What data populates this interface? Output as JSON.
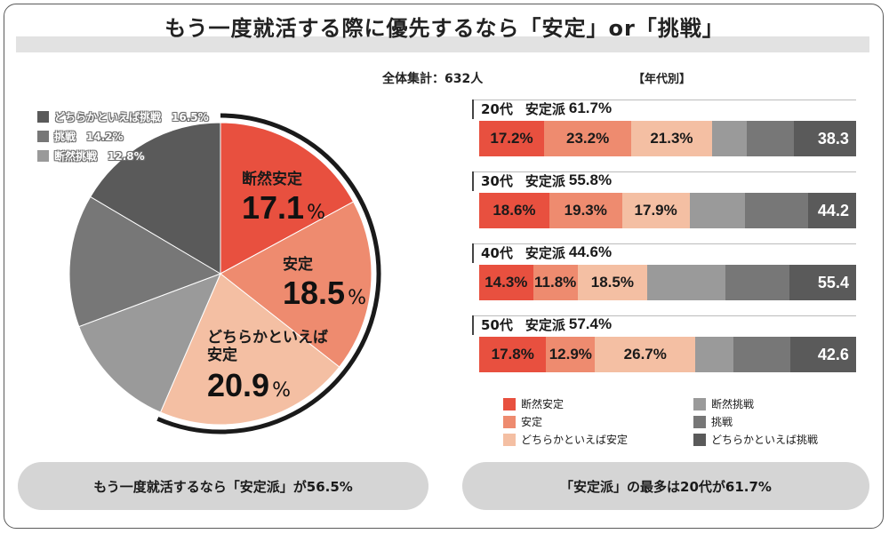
{
  "title": "もう一度就活する際に優先するなら「安定」or「挑戦」",
  "total_label": "全体集計：632人",
  "age_section_title": "【年代別】",
  "colors": {
    "dangzen_antei": "#e8503f",
    "antei": "#ee8b6f",
    "dochira_antei": "#f4bfa3",
    "dangzen_chosen": "#9a9a9a",
    "chosen": "#777777",
    "dochira_chosen": "#5a5a5a",
    "ring": "#1a1a1a"
  },
  "chart_data": [
    {
      "type": "pie",
      "title": "全体集計：632人",
      "slices": [
        {
          "name": "断然安定",
          "value": 17.1,
          "label": "17.1",
          "color": "#e8503f"
        },
        {
          "name": "安定",
          "value": 18.5,
          "label": "18.5",
          "color": "#ee8b6f"
        },
        {
          "name": "どちらかといえば安定",
          "value": 20.9,
          "label": "20.9",
          "color": "#f4bfa3"
        },
        {
          "name": "断然挑戦",
          "value": 12.8,
          "label": "12.8",
          "color": "#9a9a9a"
        },
        {
          "name": "挑戦",
          "value": 14.2,
          "label": "14.2",
          "color": "#777777"
        },
        {
          "name": "どちらかといえば挑戦",
          "value": 16.5,
          "label": "16.5",
          "color": "#5a5a5a"
        }
      ],
      "slice_labels": {
        "s0": "断然安定",
        "s1": "安定",
        "s2_line1": "どちらかといえば",
        "s2_line2": "安定",
        "pct_sign": "%"
      },
      "legend_items": [
        {
          "label": "どちらかといえば挑戦　16.5%",
          "color": "#5a5a5a"
        },
        {
          "label": "挑戦　14.2%",
          "color": "#777777"
        },
        {
          "label": "断然挑戦　12.8%",
          "color": "#9a9a9a"
        }
      ]
    },
    {
      "type": "bar",
      "orientation": "horizontal",
      "stacked": true,
      "title": "【年代別】",
      "categories": [
        "20代",
        "30代",
        "40代",
        "50代"
      ],
      "group_labels": [
        {
          "age": "20代",
          "label": "安定派",
          "pct": "61.7%"
        },
        {
          "age": "30代",
          "label": "安定派",
          "pct": "55.8%"
        },
        {
          "age": "40代",
          "label": "安定派",
          "pct": "44.6%"
        },
        {
          "age": "50代",
          "label": "安定派",
          "pct": "57.4%"
        }
      ],
      "series": [
        {
          "name": "断然安定",
          "color": "#e8503f",
          "values": [
            17.2,
            18.6,
            14.3,
            17.8
          ],
          "labels": [
            "17.2%",
            "18.6%",
            "14.3%",
            "17.8%"
          ]
        },
        {
          "name": "安定",
          "color": "#ee8b6f",
          "values": [
            23.2,
            19.3,
            11.8,
            12.9
          ],
          "labels": [
            "23.2%",
            "19.3%",
            "11.8%",
            "12.9%"
          ]
        },
        {
          "name": "どちらかといえば安定",
          "color": "#f4bfa3",
          "values": [
            21.3,
            17.9,
            18.5,
            26.7
          ],
          "labels": [
            "21.3%",
            "17.9%",
            "18.5%",
            "26.7%"
          ]
        },
        {
          "name": "断然挑戦",
          "color": "#9a9a9a",
          "values": [
            9.4,
            14.8,
            20.8,
            10.0
          ],
          "labels": [
            "",
            "",
            "",
            ""
          ]
        },
        {
          "name": "挑戦",
          "color": "#777777",
          "values": [
            12.3,
            16.7,
            17.0,
            15.2
          ],
          "labels": [
            "",
            "",
            "",
            ""
          ]
        },
        {
          "name": "どちらかといえば挑戦",
          "color": "#5a5a5a",
          "values": [
            16.6,
            12.7,
            17.6,
            17.4
          ],
          "labels": [
            "",
            "",
            "",
            ""
          ]
        }
      ],
      "challenge_totals": [
        "38.3",
        "44.2",
        "55.4",
        "42.6"
      ],
      "xlim": [
        0,
        100
      ]
    }
  ],
  "bar_legend": [
    {
      "label": "断然安定",
      "color": "#e8503f"
    },
    {
      "label": "安定",
      "color": "#ee8b6f"
    },
    {
      "label": "どちらかといえば安定",
      "color": "#f4bfa3"
    },
    {
      "label": "断然挑戦",
      "color": "#9a9a9a"
    },
    {
      "label": "挑戦",
      "color": "#777777"
    },
    {
      "label": "どちらかといえば挑戦",
      "color": "#5a5a5a"
    }
  ],
  "summary_left": "もう一度就活するなら「安定派」が56.5%",
  "summary_right": "「安定派」の最多は20代が61.7%"
}
